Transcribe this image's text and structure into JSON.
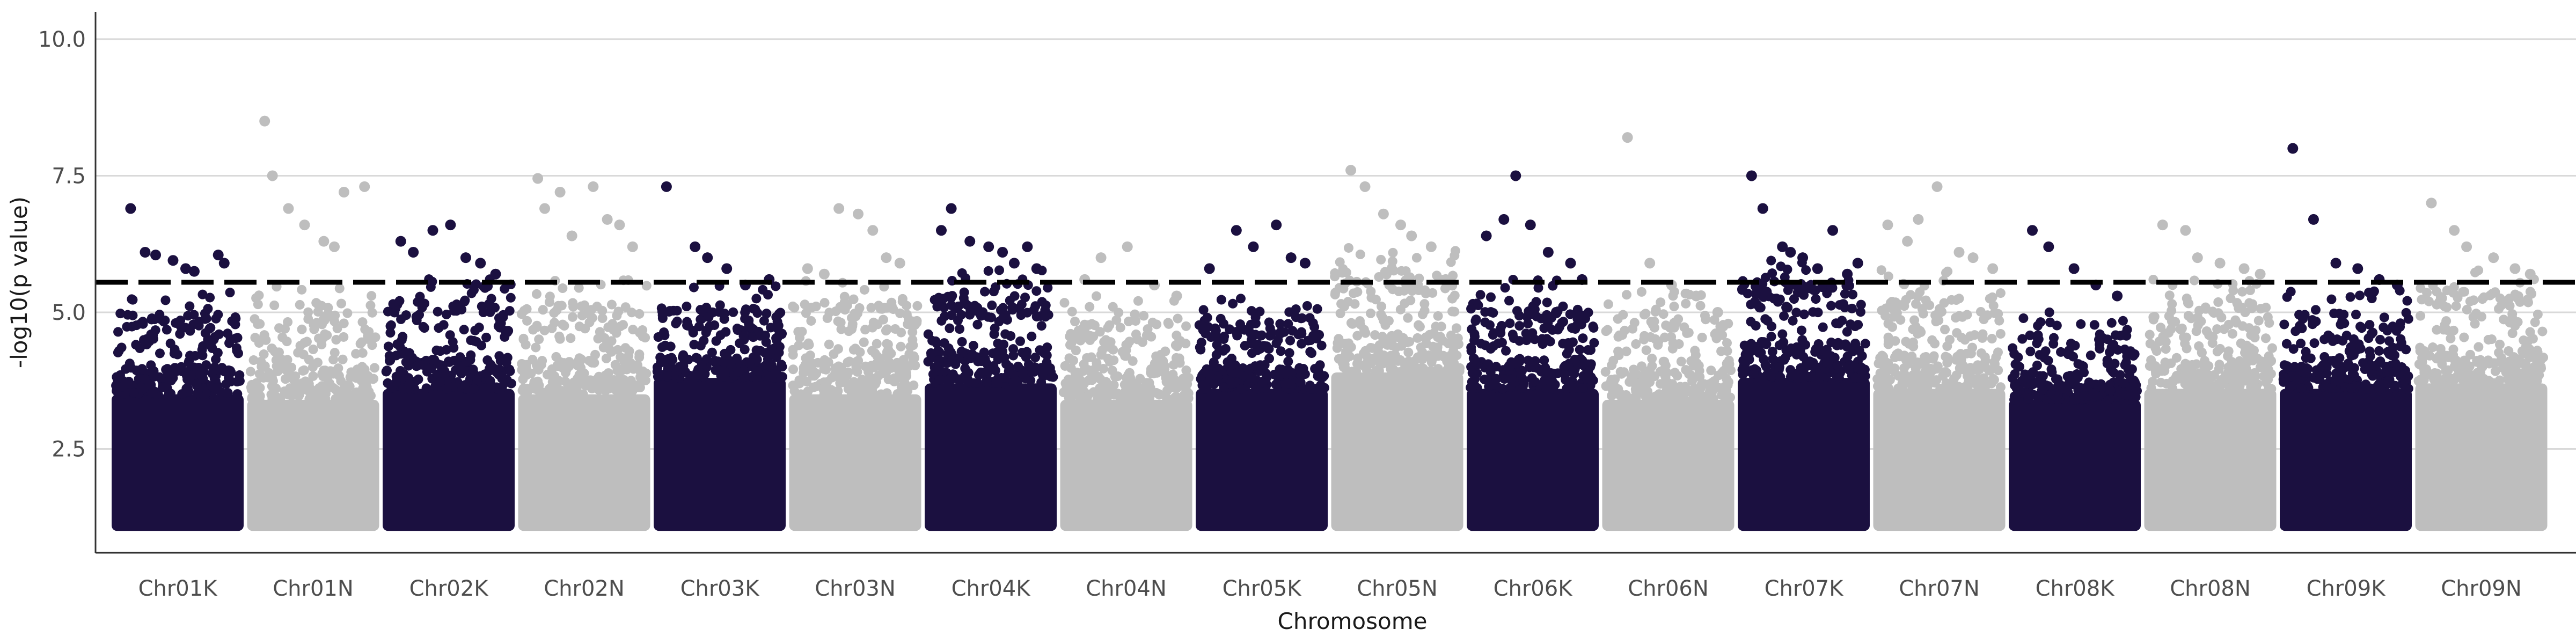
{
  "chart_data": {
    "type": "scatter",
    "subtype": "manhattan",
    "title": "",
    "xlabel": "Chromosome",
    "ylabel": "-log10(p value)",
    "ylim": [
      0.6,
      10.5
    ],
    "yticks": [
      2.5,
      5.0,
      7.5,
      10.0
    ],
    "ytick_labels": [
      "2.5",
      "5.0",
      "7.5",
      "10.0"
    ],
    "grid": "horizontal major lines only",
    "legend": "none",
    "threshold": {
      "value": 5.55,
      "style": "dashed",
      "color": "#000000"
    },
    "colors": {
      "K": "#1b1040",
      "N": "#bebebe"
    },
    "base_cutoff": 1.0,
    "chromosomes": [
      {
        "name": "Chr01K",
        "color_group": "K",
        "dense_top": 3.5,
        "body_top": 4.4,
        "peaks": [
          6.9,
          6.1,
          6.05,
          5.95,
          5.8,
          5.75,
          6.05,
          5.9
        ]
      },
      {
        "name": "Chr01N",
        "color_group": "N",
        "dense_top": 3.4,
        "body_top": 4.5,
        "peaks": [
          8.5,
          7.5,
          6.9,
          6.6,
          6.3,
          6.2,
          7.2,
          7.3
        ]
      },
      {
        "name": "Chr02K",
        "color_group": "K",
        "dense_top": 3.6,
        "body_top": 4.7,
        "peaks": [
          6.3,
          6.1,
          6.5,
          6.6,
          6.0,
          5.9,
          5.7
        ]
      },
      {
        "name": "Chr02N",
        "color_group": "N",
        "dense_top": 3.5,
        "body_top": 4.6,
        "peaks": [
          7.45,
          6.9,
          7.2,
          6.4,
          7.3,
          6.7,
          6.6,
          6.2
        ]
      },
      {
        "name": "Chr03K",
        "color_group": "K",
        "dense_top": 3.8,
        "body_top": 4.5,
        "peaks": [
          7.3,
          6.2,
          6.0,
          5.8,
          5.5,
          5.6
        ]
      },
      {
        "name": "Chr03N",
        "color_group": "N",
        "dense_top": 3.5,
        "body_top": 4.6,
        "peaks": [
          5.8,
          5.7,
          6.9,
          6.8,
          6.5,
          6.0,
          5.9
        ]
      },
      {
        "name": "Chr04K",
        "color_group": "K",
        "dense_top": 3.7,
        "body_top": 4.8,
        "peaks": [
          6.5,
          6.9,
          6.3,
          6.2,
          6.1,
          5.9,
          6.2,
          5.8
        ]
      },
      {
        "name": "Chr04N",
        "color_group": "N",
        "dense_top": 3.4,
        "body_top": 4.3,
        "peaks": [
          5.6,
          6.0,
          6.2,
          5.5,
          5.3
        ]
      },
      {
        "name": "Chr05K",
        "color_group": "K",
        "dense_top": 3.6,
        "body_top": 4.3,
        "peaks": [
          5.8,
          6.5,
          6.2,
          6.6,
          6.0,
          5.9
        ]
      },
      {
        "name": "Chr05N",
        "color_group": "N",
        "dense_top": 3.9,
        "body_top": 5.2,
        "peaks": [
          7.6,
          7.3,
          6.8,
          6.6,
          6.4,
          6.2,
          5.6
        ]
      },
      {
        "name": "Chr06K",
        "color_group": "K",
        "dense_top": 3.6,
        "body_top": 4.6,
        "peaks": [
          6.4,
          6.7,
          7.5,
          6.6,
          6.1,
          5.9,
          5.6
        ]
      },
      {
        "name": "Chr06N",
        "color_group": "N",
        "dense_top": 3.4,
        "body_top": 4.4,
        "peaks": [
          8.2,
          5.9,
          5.5,
          5.3,
          5.0
        ]
      },
      {
        "name": "Chr07K",
        "color_group": "K",
        "dense_top": 3.8,
        "body_top": 5.0,
        "peaks": [
          7.5,
          6.9,
          6.2,
          6.1,
          6.0,
          5.8,
          6.5,
          5.7,
          5.9
        ]
      },
      {
        "name": "Chr07N",
        "color_group": "N",
        "dense_top": 3.6,
        "body_top": 4.8,
        "peaks": [
          6.6,
          6.3,
          6.7,
          7.3,
          6.1,
          6.0,
          5.8
        ]
      },
      {
        "name": "Chr08K",
        "color_group": "K",
        "dense_top": 3.4,
        "body_top": 4.0,
        "peaks": [
          6.5,
          6.2,
          5.8,
          5.5,
          5.3
        ]
      },
      {
        "name": "Chr08N",
        "color_group": "N",
        "dense_top": 3.6,
        "body_top": 4.6,
        "peaks": [
          6.6,
          6.5,
          6.0,
          5.9,
          5.8,
          5.7
        ]
      },
      {
        "name": "Chr09K",
        "color_group": "K",
        "dense_top": 3.6,
        "body_top": 4.4,
        "peaks": [
          8.0,
          6.7,
          5.9,
          5.8,
          5.6,
          5.5
        ]
      },
      {
        "name": "Chr09N",
        "color_group": "N",
        "dense_top": 3.7,
        "body_top": 4.8,
        "peaks": [
          7.0,
          6.5,
          6.2,
          6.0,
          5.8,
          5.7
        ]
      }
    ]
  }
}
